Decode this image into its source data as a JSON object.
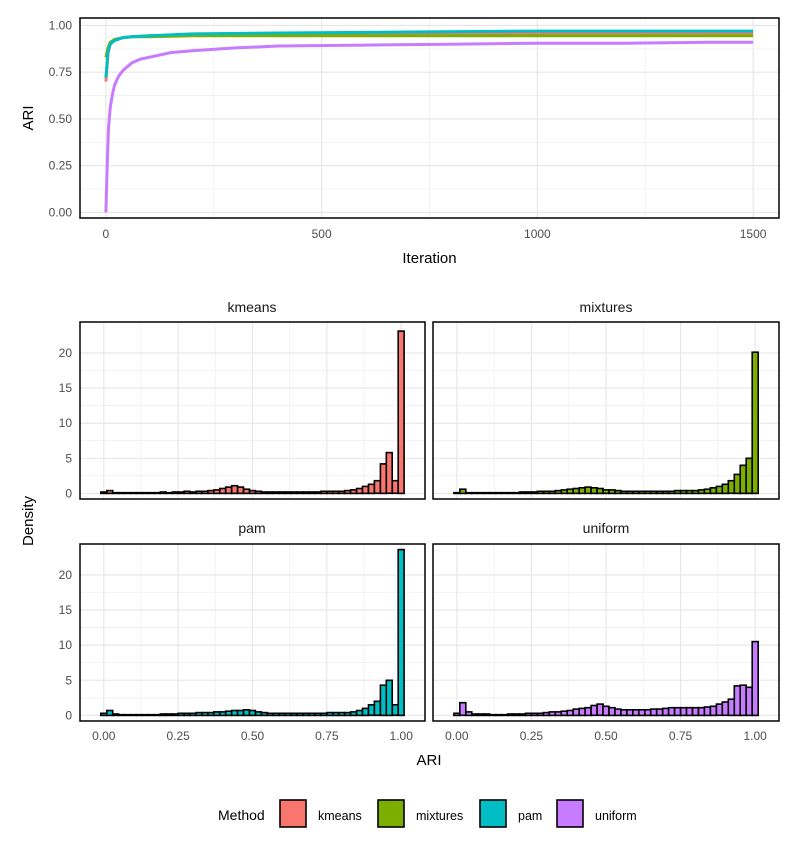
{
  "colors": {
    "kmeans": "#F8766D",
    "mixtures": "#7CAE00",
    "pam": "#00BFC4",
    "uniform": "#C77CFF"
  },
  "chart_data": [
    {
      "type": "line",
      "xlabel": "Iteration",
      "ylabel": "ARI",
      "xlim": [
        -60,
        1560
      ],
      "ylim": [
        -0.03,
        1.04
      ],
      "xticks": [
        0,
        500,
        1000,
        1500
      ],
      "xtick_labels": [
        "0",
        "500",
        "1000",
        "1500"
      ],
      "yticks": [
        0,
        0.25,
        0.5,
        0.75,
        1
      ],
      "ytick_labels": [
        "0.00",
        "0.25",
        "0.50",
        "0.75",
        "1.00"
      ],
      "grid": true,
      "series": [
        {
          "name": "kmeans",
          "x": [
            0,
            5,
            10,
            20,
            40,
            60,
            100,
            200,
            400,
            700,
            1000,
            1300,
            1500
          ],
          "y": [
            0.7,
            0.85,
            0.9,
            0.92,
            0.935,
            0.94,
            0.945,
            0.95,
            0.955,
            0.955,
            0.955,
            0.955,
            0.955
          ]
        },
        {
          "name": "mixtures",
          "x": [
            0,
            5,
            10,
            20,
            40,
            60,
            100,
            200,
            400,
            700,
            1000,
            1300,
            1500
          ],
          "y": [
            0.83,
            0.88,
            0.91,
            0.925,
            0.935,
            0.94,
            0.94,
            0.945,
            0.945,
            0.945,
            0.945,
            0.945,
            0.945
          ]
        },
        {
          "name": "pam",
          "x": [
            0,
            5,
            10,
            20,
            40,
            60,
            100,
            200,
            400,
            700,
            1000,
            1300,
            1500
          ],
          "y": [
            0.72,
            0.86,
            0.9,
            0.92,
            0.935,
            0.94,
            0.945,
            0.955,
            0.96,
            0.965,
            0.97,
            0.97,
            0.97
          ]
        },
        {
          "name": "uniform",
          "x": [
            0,
            3,
            6,
            10,
            15,
            20,
            30,
            40,
            60,
            80,
            100,
            150,
            200,
            300,
            400,
            600,
            800,
            1000,
            1200,
            1400,
            1500
          ],
          "y": [
            0.0,
            0.25,
            0.45,
            0.56,
            0.63,
            0.68,
            0.73,
            0.76,
            0.8,
            0.82,
            0.83,
            0.855,
            0.865,
            0.88,
            0.89,
            0.895,
            0.9,
            0.905,
            0.905,
            0.91,
            0.91
          ]
        }
      ]
    },
    {
      "type": "bar",
      "subtype": "histogram-facets",
      "xlabel": "ARI",
      "ylabel": "Density",
      "xlim": [
        -0.08,
        1.08
      ],
      "ylim": [
        -0.8,
        24.4
      ],
      "xticks": [
        0,
        0.25,
        0.5,
        0.75,
        1
      ],
      "xtick_labels": [
        "0.00",
        "0.25",
        "0.50",
        "0.75",
        "1.00"
      ],
      "yticks": [
        0,
        5,
        10,
        15,
        20
      ],
      "ytick_labels": [
        "0",
        "5",
        "10",
        "15",
        "20"
      ],
      "bin_width": 0.02,
      "bin_centers": [
        0.0,
        0.02,
        0.04,
        0.06,
        0.08,
        0.1,
        0.12,
        0.14,
        0.16,
        0.18,
        0.2,
        0.22,
        0.24,
        0.26,
        0.28,
        0.3,
        0.32,
        0.34,
        0.36,
        0.38,
        0.4,
        0.42,
        0.44,
        0.46,
        0.48,
        0.5,
        0.52,
        0.54,
        0.56,
        0.58,
        0.6,
        0.62,
        0.64,
        0.66,
        0.68,
        0.7,
        0.72,
        0.74,
        0.76,
        0.78,
        0.8,
        0.82,
        0.84,
        0.86,
        0.88,
        0.9,
        0.92,
        0.94,
        0.96,
        0.98,
        1.0
      ],
      "facets": [
        {
          "name": "kmeans",
          "values": [
            0.2,
            0.4,
            0.1,
            0.1,
            0.1,
            0.1,
            0.1,
            0.1,
            0.1,
            0.1,
            0.2,
            0.1,
            0.2,
            0.2,
            0.3,
            0.2,
            0.3,
            0.3,
            0.4,
            0.5,
            0.7,
            0.9,
            1.1,
            0.9,
            0.6,
            0.4,
            0.3,
            0.2,
            0.2,
            0.2,
            0.2,
            0.2,
            0.2,
            0.2,
            0.2,
            0.2,
            0.2,
            0.3,
            0.3,
            0.3,
            0.3,
            0.4,
            0.5,
            0.7,
            1.0,
            1.3,
            1.8,
            4.2,
            5.8,
            1.8,
            23.1
          ]
        },
        {
          "name": "mixtures",
          "values": [
            0.1,
            0.6,
            0.1,
            0.1,
            0.1,
            0.1,
            0.1,
            0.1,
            0.1,
            0.1,
            0.1,
            0.2,
            0.2,
            0.2,
            0.3,
            0.3,
            0.3,
            0.4,
            0.5,
            0.6,
            0.7,
            0.8,
            0.9,
            0.8,
            0.7,
            0.5,
            0.5,
            0.4,
            0.3,
            0.3,
            0.3,
            0.3,
            0.3,
            0.3,
            0.3,
            0.3,
            0.3,
            0.4,
            0.4,
            0.4,
            0.4,
            0.5,
            0.6,
            0.8,
            1.0,
            1.3,
            1.8,
            2.7,
            4.0,
            5.0,
            20.1
          ]
        },
        {
          "name": "pam",
          "values": [
            0.3,
            0.7,
            0.2,
            0.1,
            0.1,
            0.1,
            0.1,
            0.1,
            0.1,
            0.1,
            0.2,
            0.2,
            0.2,
            0.3,
            0.3,
            0.3,
            0.4,
            0.4,
            0.4,
            0.5,
            0.5,
            0.6,
            0.7,
            0.7,
            0.8,
            0.7,
            0.5,
            0.4,
            0.3,
            0.3,
            0.3,
            0.3,
            0.3,
            0.3,
            0.3,
            0.3,
            0.3,
            0.3,
            0.4,
            0.4,
            0.4,
            0.4,
            0.5,
            0.7,
            1.0,
            1.5,
            2.0,
            4.3,
            5.0,
            1.5,
            23.6
          ]
        },
        {
          "name": "uniform",
          "values": [
            0.3,
            1.8,
            0.5,
            0.2,
            0.2,
            0.2,
            0.1,
            0.1,
            0.1,
            0.2,
            0.2,
            0.2,
            0.3,
            0.3,
            0.3,
            0.4,
            0.5,
            0.5,
            0.6,
            0.7,
            0.9,
            1.0,
            1.1,
            1.4,
            1.6,
            1.3,
            1.1,
            0.9,
            0.8,
            0.8,
            0.8,
            0.8,
            0.8,
            0.9,
            0.9,
            1.0,
            1.1,
            1.1,
            1.1,
            1.1,
            1.1,
            1.1,
            1.2,
            1.3,
            1.6,
            1.9,
            2.3,
            4.2,
            4.3,
            4.0,
            10.5
          ]
        }
      ]
    }
  ],
  "legend": {
    "title": "Method",
    "entries": [
      "kmeans",
      "mixtures",
      "pam",
      "uniform"
    ]
  }
}
